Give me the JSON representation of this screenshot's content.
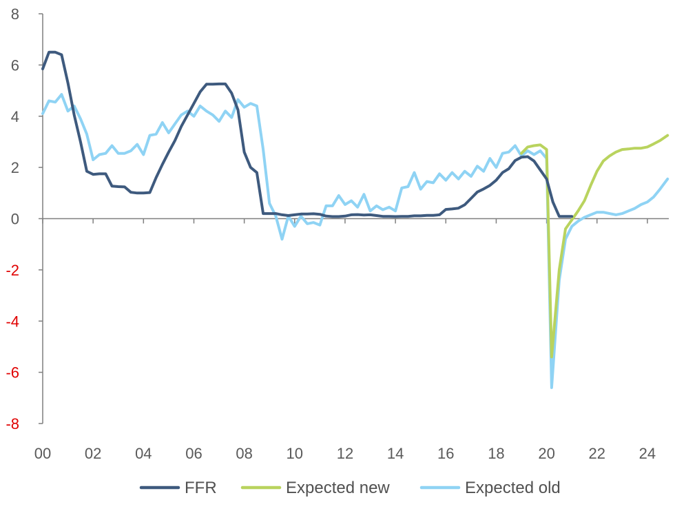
{
  "chart_data": {
    "type": "line",
    "title": "",
    "xlabel": "",
    "ylabel": "",
    "ylim": [
      -8,
      8
    ],
    "xlim": [
      2000,
      2024.85
    ],
    "grid": false,
    "legend_position": "bottom",
    "y_ticks": [
      {
        "value": 8,
        "label": "8",
        "color": "#595959"
      },
      {
        "value": 6,
        "label": "6",
        "color": "#595959"
      },
      {
        "value": 4,
        "label": "4",
        "color": "#595959"
      },
      {
        "value": 2,
        "label": "2",
        "color": "#595959"
      },
      {
        "value": 0,
        "label": "0",
        "color": "#595959"
      },
      {
        "value": -2,
        "label": "-2",
        "color": "#e00000"
      },
      {
        "value": -4,
        "label": "-4",
        "color": "#e00000"
      },
      {
        "value": -6,
        "label": "-6",
        "color": "#e00000"
      },
      {
        "value": -8,
        "label": "-8",
        "color": "#e00000"
      }
    ],
    "x_ticks": [
      {
        "value": 2000,
        "label": "00"
      },
      {
        "value": 2002,
        "label": "02"
      },
      {
        "value": 2004,
        "label": "04"
      },
      {
        "value": 2006,
        "label": "06"
      },
      {
        "value": 2008,
        "label": "08"
      },
      {
        "value": 2010,
        "label": "10"
      },
      {
        "value": 2012,
        "label": "12"
      },
      {
        "value": 2014,
        "label": "14"
      },
      {
        "value": 2016,
        "label": "16"
      },
      {
        "value": 2018,
        "label": "18"
      },
      {
        "value": 2020,
        "label": "20"
      },
      {
        "value": 2022,
        "label": "22"
      },
      {
        "value": 2024,
        "label": "24"
      }
    ],
    "series": [
      {
        "name": "Expected old",
        "color": "#8fd3f4",
        "points": [
          [
            2000.0,
            4.1
          ],
          [
            2000.25,
            4.6
          ],
          [
            2000.5,
            4.55
          ],
          [
            2000.75,
            4.85
          ],
          [
            2001.0,
            4.2
          ],
          [
            2001.25,
            4.4
          ],
          [
            2001.5,
            3.9
          ],
          [
            2001.75,
            3.3
          ],
          [
            2002.0,
            2.3
          ],
          [
            2002.25,
            2.5
          ],
          [
            2002.5,
            2.55
          ],
          [
            2002.75,
            2.85
          ],
          [
            2003.0,
            2.55
          ],
          [
            2003.25,
            2.55
          ],
          [
            2003.5,
            2.65
          ],
          [
            2003.75,
            2.9
          ],
          [
            2004.0,
            2.5
          ],
          [
            2004.25,
            3.25
          ],
          [
            2004.5,
            3.3
          ],
          [
            2004.75,
            3.75
          ],
          [
            2005.0,
            3.35
          ],
          [
            2005.25,
            3.7
          ],
          [
            2005.5,
            4.05
          ],
          [
            2005.75,
            4.2
          ],
          [
            2006.0,
            4.0
          ],
          [
            2006.25,
            4.4
          ],
          [
            2006.5,
            4.2
          ],
          [
            2006.75,
            4.05
          ],
          [
            2007.0,
            3.8
          ],
          [
            2007.25,
            4.2
          ],
          [
            2007.5,
            3.95
          ],
          [
            2007.75,
            4.65
          ],
          [
            2008.0,
            4.35
          ],
          [
            2008.25,
            4.5
          ],
          [
            2008.5,
            4.4
          ],
          [
            2008.75,
            2.7
          ],
          [
            2009.0,
            0.6
          ],
          [
            2009.25,
            0.1
          ],
          [
            2009.5,
            -0.8
          ],
          [
            2009.75,
            0.1
          ],
          [
            2010.0,
            -0.3
          ],
          [
            2010.25,
            0.1
          ],
          [
            2010.5,
            -0.2
          ],
          [
            2010.75,
            -0.15
          ],
          [
            2011.0,
            -0.25
          ],
          [
            2011.25,
            0.5
          ],
          [
            2011.5,
            0.5
          ],
          [
            2011.75,
            0.9
          ],
          [
            2012.0,
            0.55
          ],
          [
            2012.25,
            0.7
          ],
          [
            2012.5,
            0.45
          ],
          [
            2012.75,
            0.95
          ],
          [
            2013.0,
            0.3
          ],
          [
            2013.25,
            0.5
          ],
          [
            2013.5,
            0.35
          ],
          [
            2013.75,
            0.45
          ],
          [
            2014.0,
            0.3
          ],
          [
            2014.25,
            1.2
          ],
          [
            2014.5,
            1.25
          ],
          [
            2014.75,
            1.8
          ],
          [
            2015.0,
            1.15
          ],
          [
            2015.25,
            1.45
          ],
          [
            2015.5,
            1.4
          ],
          [
            2015.75,
            1.75
          ],
          [
            2016.0,
            1.5
          ],
          [
            2016.25,
            1.8
          ],
          [
            2016.5,
            1.55
          ],
          [
            2016.75,
            1.85
          ],
          [
            2017.0,
            1.65
          ],
          [
            2017.25,
            2.05
          ],
          [
            2017.5,
            1.85
          ],
          [
            2017.75,
            2.35
          ],
          [
            2018.0,
            2.0
          ],
          [
            2018.25,
            2.55
          ],
          [
            2018.5,
            2.6
          ],
          [
            2018.75,
            2.85
          ],
          [
            2019.0,
            2.45
          ],
          [
            2019.25,
            2.65
          ],
          [
            2019.5,
            2.5
          ],
          [
            2019.75,
            2.65
          ],
          [
            2020.0,
            2.35
          ],
          [
            2020.2,
            -6.6
          ],
          [
            2020.5,
            -2.4
          ],
          [
            2020.75,
            -0.8
          ],
          [
            2021.0,
            -0.3
          ],
          [
            2021.25,
            -0.1
          ],
          [
            2021.5,
            0.05
          ],
          [
            2021.75,
            0.15
          ],
          [
            2022.0,
            0.25
          ],
          [
            2022.25,
            0.25
          ],
          [
            2022.5,
            0.2
          ],
          [
            2022.75,
            0.15
          ],
          [
            2023.0,
            0.2
          ],
          [
            2023.25,
            0.3
          ],
          [
            2023.5,
            0.4
          ],
          [
            2023.75,
            0.55
          ],
          [
            2024.0,
            0.65
          ],
          [
            2024.25,
            0.85
          ],
          [
            2024.5,
            1.15
          ],
          [
            2024.8,
            1.55
          ]
        ]
      },
      {
        "name": "Expected new",
        "color": "#b9d35e",
        "points": [
          [
            2019.0,
            2.55
          ],
          [
            2019.25,
            2.8
          ],
          [
            2019.5,
            2.85
          ],
          [
            2019.75,
            2.88
          ],
          [
            2020.0,
            2.7
          ],
          [
            2020.2,
            -5.4
          ],
          [
            2020.5,
            -2.0
          ],
          [
            2020.75,
            -0.4
          ],
          [
            2021.0,
            -0.05
          ],
          [
            2021.25,
            0.3
          ],
          [
            2021.5,
            0.7
          ],
          [
            2021.75,
            1.3
          ],
          [
            2022.0,
            1.85
          ],
          [
            2022.25,
            2.25
          ],
          [
            2022.5,
            2.45
          ],
          [
            2022.75,
            2.6
          ],
          [
            2023.0,
            2.7
          ],
          [
            2023.25,
            2.72
          ],
          [
            2023.5,
            2.75
          ],
          [
            2023.75,
            2.75
          ],
          [
            2024.0,
            2.8
          ],
          [
            2024.25,
            2.92
          ],
          [
            2024.5,
            3.05
          ],
          [
            2024.8,
            3.25
          ]
        ]
      },
      {
        "name": "FFR",
        "color": "#3e5a7e",
        "points": [
          [
            2000.0,
            5.85
          ],
          [
            2000.25,
            6.5
          ],
          [
            2000.5,
            6.5
          ],
          [
            2000.75,
            6.4
          ],
          [
            2001.0,
            5.3
          ],
          [
            2001.25,
            4.05
          ],
          [
            2001.5,
            3.0
          ],
          [
            2001.75,
            1.85
          ],
          [
            2002.0,
            1.73
          ],
          [
            2002.25,
            1.75
          ],
          [
            2002.5,
            1.75
          ],
          [
            2002.75,
            1.27
          ],
          [
            2003.0,
            1.25
          ],
          [
            2003.25,
            1.24
          ],
          [
            2003.5,
            1.03
          ],
          [
            2003.75,
            1.0
          ],
          [
            2004.0,
            1.0
          ],
          [
            2004.25,
            1.02
          ],
          [
            2004.5,
            1.6
          ],
          [
            2004.75,
            2.12
          ],
          [
            2005.0,
            2.6
          ],
          [
            2005.25,
            3.05
          ],
          [
            2005.5,
            3.6
          ],
          [
            2005.75,
            4.05
          ],
          [
            2006.0,
            4.5
          ],
          [
            2006.25,
            4.95
          ],
          [
            2006.5,
            5.25
          ],
          [
            2006.75,
            5.25
          ],
          [
            2007.0,
            5.26
          ],
          [
            2007.25,
            5.26
          ],
          [
            2007.5,
            4.9
          ],
          [
            2007.75,
            4.25
          ],
          [
            2008.0,
            2.6
          ],
          [
            2008.25,
            2.0
          ],
          [
            2008.5,
            1.8
          ],
          [
            2008.75,
            0.2
          ],
          [
            2009.0,
            0.2
          ],
          [
            2009.25,
            0.2
          ],
          [
            2009.5,
            0.15
          ],
          [
            2009.75,
            0.12
          ],
          [
            2010.0,
            0.15
          ],
          [
            2010.25,
            0.18
          ],
          [
            2010.5,
            0.18
          ],
          [
            2010.75,
            0.19
          ],
          [
            2011.0,
            0.17
          ],
          [
            2011.25,
            0.1
          ],
          [
            2011.5,
            0.08
          ],
          [
            2011.75,
            0.08
          ],
          [
            2012.0,
            0.1
          ],
          [
            2012.25,
            0.15
          ],
          [
            2012.5,
            0.16
          ],
          [
            2012.75,
            0.14
          ],
          [
            2013.0,
            0.15
          ],
          [
            2013.25,
            0.12
          ],
          [
            2013.5,
            0.09
          ],
          [
            2013.75,
            0.09
          ],
          [
            2014.0,
            0.08
          ],
          [
            2014.25,
            0.09
          ],
          [
            2014.5,
            0.09
          ],
          [
            2014.75,
            0.11
          ],
          [
            2015.0,
            0.11
          ],
          [
            2015.25,
            0.13
          ],
          [
            2015.5,
            0.13
          ],
          [
            2015.75,
            0.15
          ],
          [
            2016.0,
            0.36
          ],
          [
            2016.25,
            0.38
          ],
          [
            2016.5,
            0.41
          ],
          [
            2016.75,
            0.54
          ],
          [
            2017.0,
            0.79
          ],
          [
            2017.25,
            1.04
          ],
          [
            2017.5,
            1.16
          ],
          [
            2017.75,
            1.3
          ],
          [
            2018.0,
            1.5
          ],
          [
            2018.25,
            1.8
          ],
          [
            2018.5,
            1.95
          ],
          [
            2018.75,
            2.27
          ],
          [
            2019.0,
            2.4
          ],
          [
            2019.25,
            2.42
          ],
          [
            2019.5,
            2.25
          ],
          [
            2019.75,
            1.9
          ],
          [
            2020.0,
            1.55
          ],
          [
            2020.25,
            0.65
          ],
          [
            2020.5,
            0.09
          ],
          [
            2020.75,
            0.09
          ],
          [
            2021.0,
            0.09
          ]
        ]
      }
    ],
    "legend": [
      {
        "name": "FFR",
        "color": "#3e5a7e"
      },
      {
        "name": "Expected new",
        "color": "#b9d35e"
      },
      {
        "name": "Expected old",
        "color": "#8fd3f4"
      }
    ]
  }
}
